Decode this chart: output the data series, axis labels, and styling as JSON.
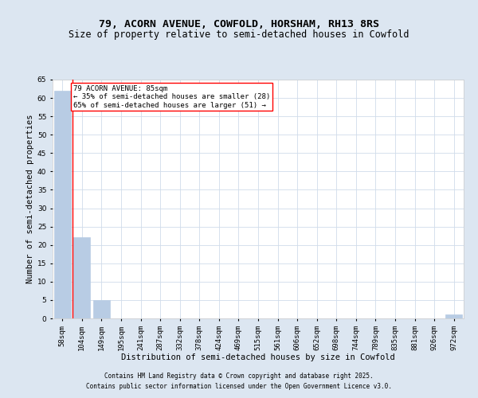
{
  "title1": "79, ACORN AVENUE, COWFOLD, HORSHAM, RH13 8RS",
  "title2": "Size of property relative to semi-detached houses in Cowfold",
  "xlabel": "Distribution of semi-detached houses by size in Cowfold",
  "ylabel": "Number of semi-detached properties",
  "categories": [
    "58sqm",
    "104sqm",
    "149sqm",
    "195sqm",
    "241sqm",
    "287sqm",
    "332sqm",
    "378sqm",
    "424sqm",
    "469sqm",
    "515sqm",
    "561sqm",
    "606sqm",
    "652sqm",
    "698sqm",
    "744sqm",
    "789sqm",
    "835sqm",
    "881sqm",
    "926sqm",
    "972sqm"
  ],
  "values": [
    62,
    22,
    5,
    0,
    0,
    0,
    0,
    0,
    0,
    0,
    0,
    0,
    0,
    0,
    0,
    0,
    0,
    0,
    0,
    0,
    1
  ],
  "bar_color": "#b8cce4",
  "annotation_text": "79 ACORN AVENUE: 85sqm\n← 35% of semi-detached houses are smaller (28)\n65% of semi-detached houses are larger (51) →",
  "ylim": [
    0,
    65
  ],
  "yticks": [
    0,
    5,
    10,
    15,
    20,
    25,
    30,
    35,
    40,
    45,
    50,
    55,
    60,
    65
  ],
  "grid_color": "#d0dcea",
  "background_color": "#dce6f1",
  "plot_bg_color": "#ffffff",
  "footer_line1": "Contains HM Land Registry data © Crown copyright and database right 2025.",
  "footer_line2": "Contains public sector information licensed under the Open Government Licence v3.0.",
  "title1_fontsize": 9.5,
  "title2_fontsize": 8.5,
  "annotation_fontsize": 6.5,
  "axis_label_fontsize": 7.5,
  "tick_fontsize": 6.5,
  "footer_fontsize": 5.5
}
